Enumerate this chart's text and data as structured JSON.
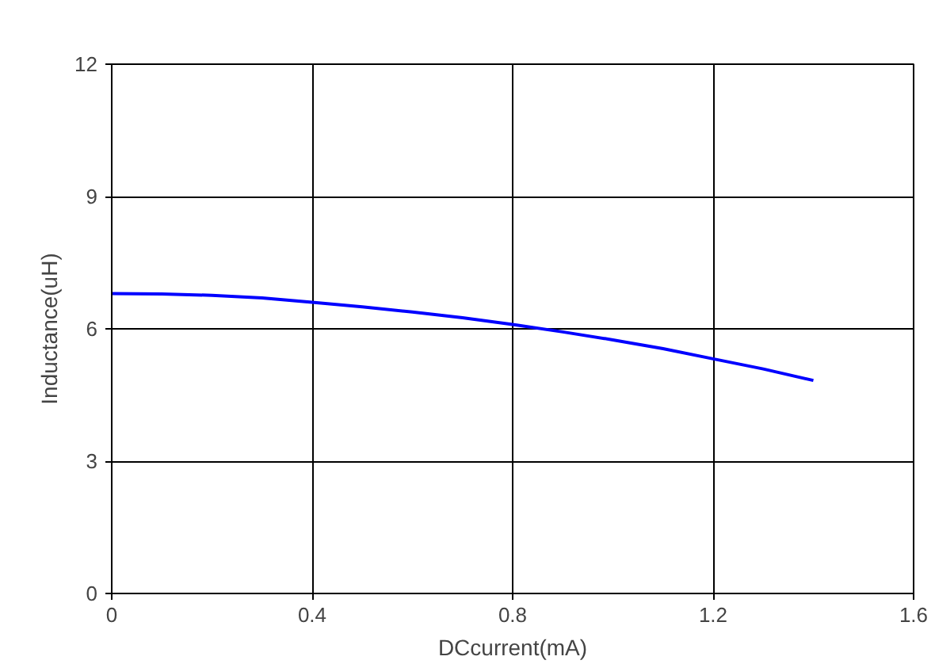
{
  "chart_data": {
    "type": "line",
    "xlabel": "DCcurrent(mA)",
    "ylabel": "Inductance(uH)",
    "x": [
      0,
      0.1,
      0.2,
      0.3,
      0.4,
      0.5,
      0.6,
      0.7,
      0.8,
      0.9,
      1.0,
      1.1,
      1.2,
      1.3,
      1.4
    ],
    "series": [
      {
        "color": "#0000ff",
        "values": [
          6.8,
          6.79,
          6.76,
          6.7,
          6.6,
          6.5,
          6.38,
          6.25,
          6.1,
          5.93,
          5.75,
          5.55,
          5.32,
          5.09,
          4.83
        ]
      }
    ],
    "xlim": [
      0,
      1.6
    ],
    "xticks": [
      0,
      0.4,
      0.8,
      1.2,
      1.6
    ],
    "ylim": [
      0,
      12
    ],
    "yticks": [
      0,
      3,
      6,
      9,
      12
    ],
    "grid": true,
    "line_style": "solid",
    "marker": "none"
  }
}
